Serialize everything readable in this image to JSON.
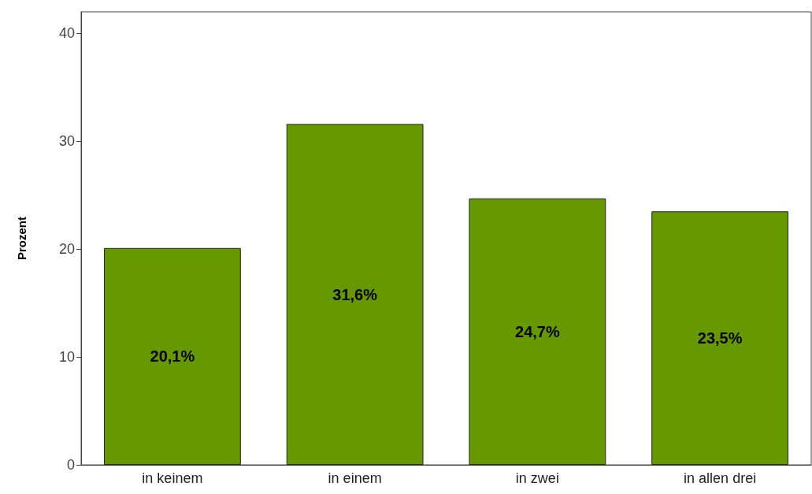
{
  "chart_data": {
    "type": "bar",
    "ylabel": "Prozent",
    "categories": [
      "in keinem",
      "in einem",
      "in zwei",
      "in allen drei"
    ],
    "values": [
      20.1,
      31.6,
      24.7,
      23.5
    ],
    "value_labels": [
      "20,1%",
      "31,6%",
      "24,7%",
      "23,5%"
    ],
    "color": "#669900",
    "ylim": [
      0,
      42
    ],
    "yticks": [
      0,
      10,
      20,
      30,
      40
    ],
    "grid": false
  }
}
